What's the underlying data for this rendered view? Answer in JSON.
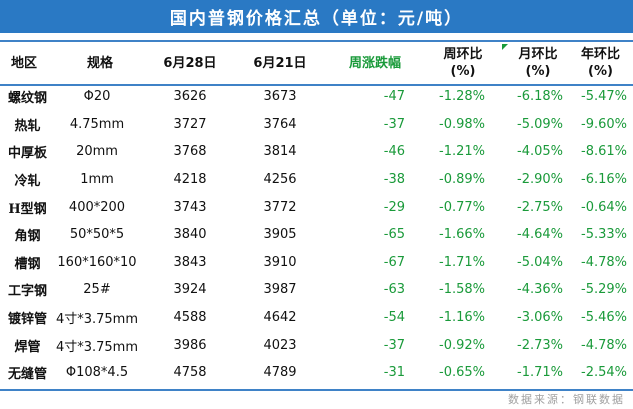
{
  "title": "国内普钢价格汇总（单位：元/吨）",
  "headers": {
    "region": "地区",
    "spec": "规格",
    "price_current": "6月28日",
    "price_previous": "6月21日",
    "weekly_change": "周涨跌幅",
    "wow_line1": "周环比",
    "wow_line2": "(%)",
    "mom_line1": "月环比",
    "mom_line2": "(%)",
    "yoy_line1": "年环比",
    "yoy_line2": "(%)"
  },
  "rows": [
    {
      "region": "螺纹钢",
      "spec": "Φ20",
      "price_current": "3626",
      "price_previous": "3673",
      "weekly_change": "-47",
      "wow": "-1.28%",
      "mom": "-6.18%",
      "yoy": "-5.47%"
    },
    {
      "region": "热轧",
      "spec": "4.75mm",
      "price_current": "3727",
      "price_previous": "3764",
      "weekly_change": "-37",
      "wow": "-0.98%",
      "mom": "-5.09%",
      "yoy": "-9.60%"
    },
    {
      "region": "中厚板",
      "spec": "20mm",
      "price_current": "3768",
      "price_previous": "3814",
      "weekly_change": "-46",
      "wow": "-1.21%",
      "mom": "-4.05%",
      "yoy": "-8.61%"
    },
    {
      "region": "冷轧",
      "spec": "1mm",
      "price_current": "4218",
      "price_previous": "4256",
      "weekly_change": "-38",
      "wow": "-0.89%",
      "mom": "-2.90%",
      "yoy": "-6.16%"
    },
    {
      "region": "H型钢",
      "spec": "400*200",
      "price_current": "3743",
      "price_previous": "3772",
      "weekly_change": "-29",
      "wow": "-0.77%",
      "mom": "-2.75%",
      "yoy": "-0.64%"
    },
    {
      "region": "角钢",
      "spec": "50*50*5",
      "price_current": "3840",
      "price_previous": "3905",
      "weekly_change": "-65",
      "wow": "-1.66%",
      "mom": "-4.64%",
      "yoy": "-5.33%"
    },
    {
      "region": "槽钢",
      "spec": "160*160*10",
      "price_current": "3843",
      "price_previous": "3910",
      "weekly_change": "-67",
      "wow": "-1.71%",
      "mom": "-5.04%",
      "yoy": "-4.78%"
    },
    {
      "region": "工字钢",
      "spec": "25#",
      "price_current": "3924",
      "price_previous": "3987",
      "weekly_change": "-63",
      "wow": "-1.58%",
      "mom": "-4.36%",
      "yoy": "-5.29%"
    },
    {
      "region": "镀锌管",
      "spec": "4寸*3.75mm",
      "price_current": "4588",
      "price_previous": "4642",
      "weekly_change": "-54",
      "wow": "-1.16%",
      "mom": "-3.06%",
      "yoy": "-5.46%"
    },
    {
      "region": "焊管",
      "spec": "4寸*3.75mm",
      "price_current": "3986",
      "price_previous": "4023",
      "weekly_change": "-37",
      "wow": "-0.92%",
      "mom": "-2.73%",
      "yoy": "-4.78%"
    },
    {
      "region": "无缝管",
      "spec": "Φ108*4.5",
      "price_current": "4758",
      "price_previous": "4789",
      "weekly_change": "-31",
      "wow": "-0.65%",
      "mom": "-1.71%",
      "yoy": "-2.54%"
    }
  ],
  "source": "数据来源：钢联数据",
  "colors": {
    "title_bg": "#2a79c4",
    "rule": "#3f82c7",
    "negative": "#1a9a3a"
  }
}
